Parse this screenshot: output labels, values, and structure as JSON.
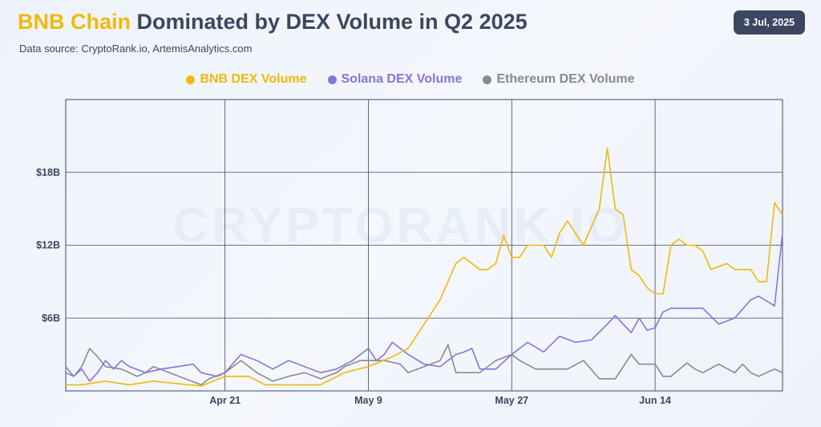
{
  "header": {
    "title_accent": "BNB Chain",
    "title_rest": " Dominated by DEX Volume in Q2 2025",
    "subtitle": "Data source: CryptoRank.io, ArtemisAnalytics.com",
    "date": "3 Jul, 2025",
    "watermark": "CRYPTORANK.IO"
  },
  "colors": {
    "bnb": "#f0b90b",
    "solana": "#8a72dd",
    "ethereum": "#8a8a8a",
    "grid": "#3b4660",
    "text": "#3b4660"
  },
  "chart_data": {
    "type": "line",
    "title": "BNB Chain Dominated by DEX Volume in Q2 2025",
    "xlabel": "",
    "ylabel": "",
    "x_range": [
      "2025-04-01",
      "2025-06-30"
    ],
    "ylim": [
      0,
      24
    ],
    "y_unit": "B",
    "y_ticks": [
      6,
      12,
      18
    ],
    "y_tick_labels": [
      "$6B",
      "$12B",
      "$18B"
    ],
    "x_ticks": [
      "2025-04-21",
      "2025-05-09",
      "2025-05-27",
      "2025-06-14"
    ],
    "x_tick_labels": [
      "Apr 21",
      "May 9",
      "May 27",
      "Jun 14"
    ],
    "grid": true,
    "legend_position": "top",
    "series": [
      {
        "name": "BNB DEX Volume",
        "color": "#f0b90b",
        "x": [
          "2025-04-01",
          "2025-04-03",
          "2025-04-06",
          "2025-04-09",
          "2025-04-12",
          "2025-04-15",
          "2025-04-18",
          "2025-04-21",
          "2025-04-24",
          "2025-04-26",
          "2025-04-30",
          "2025-05-03",
          "2025-05-06",
          "2025-05-09",
          "2025-05-12",
          "2025-05-14",
          "2025-05-16",
          "2025-05-18",
          "2025-05-20",
          "2025-05-21",
          "2025-05-22",
          "2025-05-23",
          "2025-05-24",
          "2025-05-25",
          "2025-05-26",
          "2025-05-27",
          "2025-05-28",
          "2025-05-29",
          "2025-05-30",
          "2025-05-31",
          "2025-06-01",
          "2025-06-02",
          "2025-06-03",
          "2025-06-05",
          "2025-06-07",
          "2025-06-08",
          "2025-06-09",
          "2025-06-10",
          "2025-06-11",
          "2025-06-12",
          "2025-06-13",
          "2025-06-14",
          "2025-06-15",
          "2025-06-16",
          "2025-06-17",
          "2025-06-18",
          "2025-06-19",
          "2025-06-20",
          "2025-06-21",
          "2025-06-23",
          "2025-06-24",
          "2025-06-25",
          "2025-06-26",
          "2025-06-27",
          "2025-06-28",
          "2025-06-29",
          "2025-06-30"
        ],
        "values": [
          0.5,
          0.5,
          0.8,
          0.5,
          0.8,
          0.6,
          0.4,
          1.2,
          1.2,
          0.5,
          0.5,
          0.5,
          1.5,
          2.0,
          2.8,
          3.5,
          5.5,
          7.5,
          10.5,
          11.0,
          10.5,
          10.0,
          10.0,
          10.5,
          12.8,
          11.0,
          11.0,
          12.0,
          12.0,
          12.0,
          11.0,
          13.0,
          14.0,
          12.0,
          15.0,
          20.0,
          15.0,
          14.5,
          10.0,
          9.5,
          8.5,
          8.0,
          8.0,
          12.0,
          12.5,
          12.0,
          12.0,
          11.5,
          10.0,
          10.5,
          10.0,
          10.0,
          10.0,
          9.0,
          9.0,
          15.5,
          14.5
        ]
      },
      {
        "name": "Solana DEX Volume",
        "color": "#8a72dd",
        "x": [
          "2025-04-01",
          "2025-04-02",
          "2025-04-03",
          "2025-04-04",
          "2025-04-05",
          "2025-04-06",
          "2025-04-07",
          "2025-04-08",
          "2025-04-09",
          "2025-04-11",
          "2025-04-13",
          "2025-04-15",
          "2025-04-17",
          "2025-04-18",
          "2025-04-20",
          "2025-04-21",
          "2025-04-23",
          "2025-04-25",
          "2025-04-27",
          "2025-04-29",
          "2025-05-01",
          "2025-05-03",
          "2025-05-05",
          "2025-05-07",
          "2025-05-08",
          "2025-05-09",
          "2025-05-10",
          "2025-05-11",
          "2025-05-12",
          "2025-05-14",
          "2025-05-16",
          "2025-05-18",
          "2025-05-20",
          "2025-05-21",
          "2025-05-22",
          "2025-05-23",
          "2025-05-25",
          "2025-05-27",
          "2025-05-29",
          "2025-05-31",
          "2025-06-02",
          "2025-06-04",
          "2025-06-06",
          "2025-06-08",
          "2025-06-09",
          "2025-06-10",
          "2025-06-11",
          "2025-06-12",
          "2025-06-13",
          "2025-06-14",
          "2025-06-15",
          "2025-06-16",
          "2025-06-17",
          "2025-06-20",
          "2025-06-22",
          "2025-06-24",
          "2025-06-26",
          "2025-06-27",
          "2025-06-29",
          "2025-06-30"
        ],
        "values": [
          1.5,
          1.2,
          1.8,
          0.8,
          1.5,
          2.5,
          1.8,
          2.5,
          2.0,
          1.5,
          1.8,
          2.0,
          2.2,
          1.5,
          1.2,
          1.5,
          3.0,
          2.5,
          1.8,
          2.5,
          2.0,
          1.5,
          1.8,
          2.5,
          3.0,
          3.5,
          2.5,
          3.0,
          4.0,
          3.0,
          2.2,
          2.0,
          3.0,
          3.2,
          3.5,
          1.8,
          1.8,
          3.0,
          4.0,
          3.2,
          4.5,
          4.0,
          4.2,
          5.5,
          6.2,
          5.5,
          4.8,
          6.0,
          5.0,
          5.2,
          6.5,
          6.8,
          6.8,
          6.8,
          5.5,
          6.0,
          7.5,
          7.8,
          7.0,
          13.0
        ]
      },
      {
        "name": "Ethereum DEX Volume",
        "color": "#8a8a8a",
        "x": [
          "2025-04-01",
          "2025-04-02",
          "2025-04-03",
          "2025-04-04",
          "2025-04-05",
          "2025-04-06",
          "2025-04-08",
          "2025-04-10",
          "2025-04-11",
          "2025-04-12",
          "2025-04-14",
          "2025-04-16",
          "2025-04-18",
          "2025-04-19",
          "2025-04-21",
          "2025-04-23",
          "2025-04-25",
          "2025-04-27",
          "2025-04-29",
          "2025-05-01",
          "2025-05-03",
          "2025-05-05",
          "2025-05-06",
          "2025-05-08",
          "2025-05-09",
          "2025-05-11",
          "2025-05-13",
          "2025-05-14",
          "2025-05-16",
          "2025-05-18",
          "2025-05-19",
          "2025-05-20",
          "2025-05-21",
          "2025-05-23",
          "2025-05-25",
          "2025-05-27",
          "2025-05-28",
          "2025-05-30",
          "2025-06-01",
          "2025-06-03",
          "2025-06-05",
          "2025-06-07",
          "2025-06-09",
          "2025-06-11",
          "2025-06-12",
          "2025-06-14",
          "2025-06-15",
          "2025-06-16",
          "2025-06-18",
          "2025-06-19",
          "2025-06-20",
          "2025-06-22",
          "2025-06-24",
          "2025-06-25",
          "2025-06-26",
          "2025-06-27",
          "2025-06-28",
          "2025-06-29",
          "2025-06-30"
        ],
        "values": [
          2.0,
          1.2,
          2.0,
          3.5,
          2.8,
          2.0,
          1.8,
          1.2,
          1.5,
          2.0,
          1.5,
          1.0,
          0.5,
          1.0,
          1.5,
          2.5,
          1.5,
          0.8,
          1.2,
          1.5,
          1.0,
          1.5,
          2.0,
          2.5,
          2.5,
          2.5,
          2.2,
          1.5,
          2.0,
          2.5,
          3.8,
          1.5,
          1.5,
          1.5,
          2.5,
          3.0,
          2.5,
          1.8,
          1.8,
          1.8,
          2.5,
          1.0,
          1.0,
          3.0,
          2.2,
          2.2,
          1.2,
          1.2,
          2.3,
          1.8,
          1.5,
          2.2,
          1.5,
          2.2,
          1.5,
          1.2,
          1.5,
          1.8,
          1.5
        ]
      }
    ]
  }
}
